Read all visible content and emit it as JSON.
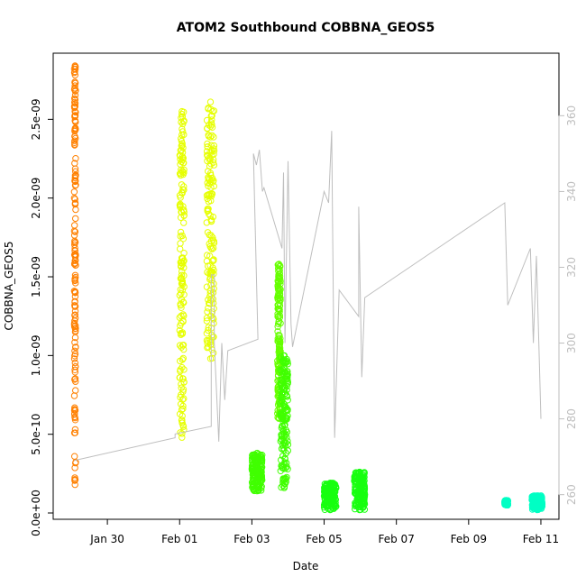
{
  "chart_data": {
    "type": "scatter",
    "title": "ATOM2 Southbound COBBNA_GEOS5",
    "xlabel": "Date",
    "ylabel": "COBBNA_GEOS5",
    "x_ticks": [
      "Jan 30",
      "Feb 01",
      "Feb 03",
      "Feb 05",
      "Feb 07",
      "Feb 09",
      "Feb 11"
    ],
    "y_ticks": [
      "0.0e+00",
      "5.0e-10",
      "1.0e-09",
      "1.5e-09",
      "2.0e-09",
      "2.5e-09"
    ],
    "y_tick_values": [
      0,
      5e-10,
      1e-09,
      1.5e-09,
      2e-09,
      2.5e-09
    ],
    "y2_ticks": [
      "260",
      "280",
      "300",
      "320",
      "340",
      "360"
    ],
    "y2_tick_values": [
      260,
      280,
      300,
      320,
      340,
      360
    ],
    "xlim": [
      "2017-01-28T12:00",
      "2017-02-11T12:00"
    ],
    "ylim": [
      -4e-11,
      2.92e-09
    ],
    "y2lim": [
      253.5,
      376.5
    ],
    "colors": {
      "orange": "#ff8000",
      "yellow": "#e6ff00",
      "green_yellow": "#8cff00",
      "green": "#40ff00",
      "green2": "#18ff10",
      "cyan": "#00ffc4",
      "secondary": "#bebebe"
    },
    "clusters": [
      {
        "x_start": "2017-01-29T02:00",
        "x_end": "2017-01-29T03:00",
        "y_min": 1.8e-10,
        "y_max": 2.84e-09,
        "color": "#ff8000"
      },
      {
        "x_start": "2017-02-01T00:00",
        "x_end": "2017-02-01T03:00",
        "y_min": 4.8e-10,
        "y_max": 2.55e-09,
        "color": "#e6ff00"
      },
      {
        "x_start": "2017-02-01T18:00",
        "x_end": "2017-02-01T23:00",
        "y_min": 9.8e-10,
        "y_max": 2.61e-09,
        "color": "#e6ff00"
      },
      {
        "x_start": "2017-02-03T00:00",
        "x_end": "2017-02-03T07:00",
        "y_min": 1.4e-10,
        "y_max": 3.8e-10,
        "color": "#40ff00"
      },
      {
        "x_start": "2017-02-03T17:00",
        "x_end": "2017-02-03T19:00",
        "y_min": 6e-10,
        "y_max": 1.58e-09,
        "color": "#66ff00"
      },
      {
        "x_start": "2017-02-03T19:00",
        "x_end": "2017-02-04T00:00",
        "y_min": 1.6e-10,
        "y_max": 1e-09,
        "color": "#40ff00"
      },
      {
        "x_start": "2017-02-05T00:00",
        "x_end": "2017-02-05T08:00",
        "y_min": 2e-11,
        "y_max": 1.9e-10,
        "color": "#18ff10"
      },
      {
        "x_start": "2017-02-05T20:00",
        "x_end": "2017-02-06T03:00",
        "y_min": 2e-11,
        "y_max": 2.6e-10,
        "color": "#18ff10"
      },
      {
        "x_start": "2017-02-10T00:00",
        "x_end": "2017-02-10T02:00",
        "y_min": 5e-11,
        "y_max": 8e-11,
        "color": "#00ffc4"
      },
      {
        "x_start": "2017-02-10T18:00",
        "x_end": "2017-02-11T01:00",
        "y_min": 2e-11,
        "y_max": 1.1e-10,
        "color": "#00ffc4"
      }
    ],
    "secondary_line": [
      [
        "2017-01-29T02:00",
        269
      ],
      [
        "2017-02-00T21:00",
        275
      ],
      [
        "2017-02-00T21:00",
        276
      ],
      [
        "2017-02-01T21:00",
        278
      ],
      [
        "2017-02-01T21:00",
        298
      ],
      [
        "2017-02-01T21:00",
        318
      ],
      [
        "2017-02-01T23:00",
        318
      ],
      [
        "2017-02-01T23:00",
        300
      ],
      [
        "2017-02-02T02:00",
        274
      ],
      [
        "2017-02-02T04:00",
        300
      ],
      [
        "2017-02-02T06:00",
        285
      ],
      [
        "2017-02-02T08:00",
        298
      ],
      [
        "2017-02-03T04:00",
        301
      ],
      [
        "2017-02-03T01:00",
        350
      ],
      [
        "2017-02-03T03:00",
        347
      ],
      [
        "2017-02-03T05:00",
        351
      ],
      [
        "2017-02-03T07:00",
        340
      ],
      [
        "2017-02-03T08:00",
        341
      ],
      [
        "2017-02-03T20:00",
        325
      ],
      [
        "2017-02-03T21:00",
        345
      ],
      [
        "2017-02-03T22:00",
        300
      ],
      [
        "2017-02-04T00:00",
        348
      ],
      [
        "2017-02-04T02:00",
        305
      ],
      [
        "2017-02-04T03:00",
        299
      ],
      [
        "2017-02-05T00:00",
        340
      ],
      [
        "2017-02-05T03:00",
        337
      ],
      [
        "2017-02-05T05:00",
        356
      ],
      [
        "2017-02-05T07:00",
        275
      ],
      [
        "2017-02-05T10:00",
        314
      ],
      [
        "2017-02-05T23:00",
        307
      ],
      [
        "2017-02-05T23:00",
        336
      ],
      [
        "2017-02-06T01:00",
        291
      ],
      [
        "2017-02-06T03:00",
        312
      ],
      [
        "2017-02-10T00:00",
        337
      ],
      [
        "2017-02-10T02:00",
        310
      ],
      [
        "2017-02-10T17:00",
        325
      ],
      [
        "2017-02-10T19:00",
        300
      ],
      [
        "2017-02-10T21:00",
        323
      ],
      [
        "2017-02-11T00:00",
        280
      ]
    ]
  }
}
